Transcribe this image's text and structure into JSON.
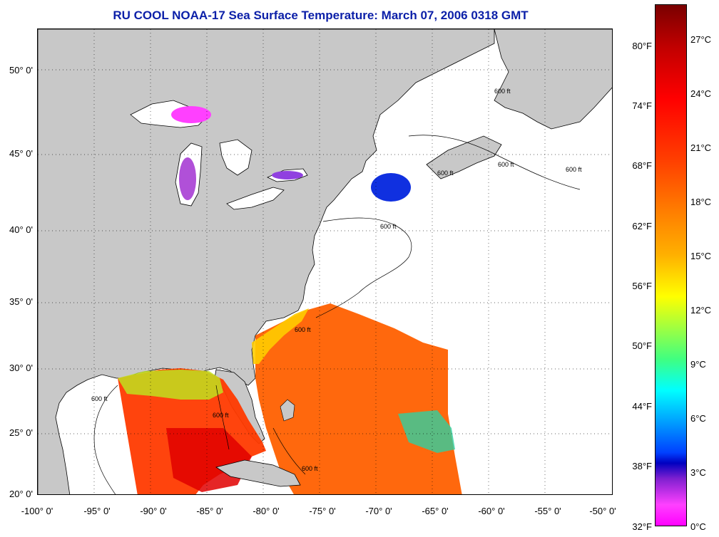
{
  "title": "RU COOL  NOAA-17  Sea Surface Temperature:  March 07, 2006 0318 GMT",
  "map": {
    "lat_labels": [
      "50° 0'",
      "45° 0'",
      "40° 0'",
      "35° 0'",
      "30° 0'",
      "25° 0'",
      "20° 0'"
    ],
    "lon_labels": [
      "-100° 0'",
      "-95° 0'",
      "-90° 0'",
      "-85° 0'",
      "-80° 0'",
      "-75° 0'",
      "-70° 0'",
      "-65° 0'",
      "-60° 0'",
      "-55° 0'",
      "-50° 0'"
    ],
    "isobath_labels": [
      "600 ft",
      "600 ft",
      "600 ft",
      "600 ft",
      "600 ft",
      "600 ft",
      "600 ft",
      "600 ft",
      "600 ft"
    ],
    "land_color": "#c8c8c8",
    "water_color": "#ffffff"
  },
  "colorbar": {
    "fahrenheit": [
      "80°F",
      "74°F",
      "68°F",
      "62°F",
      "56°F",
      "50°F",
      "44°F",
      "38°F",
      "32°F"
    ],
    "celsius": [
      "27°C",
      "24°C",
      "21°C",
      "18°C",
      "15°C",
      "12°C",
      "9°C",
      "6°C",
      "3°C",
      "0°C"
    ]
  }
}
